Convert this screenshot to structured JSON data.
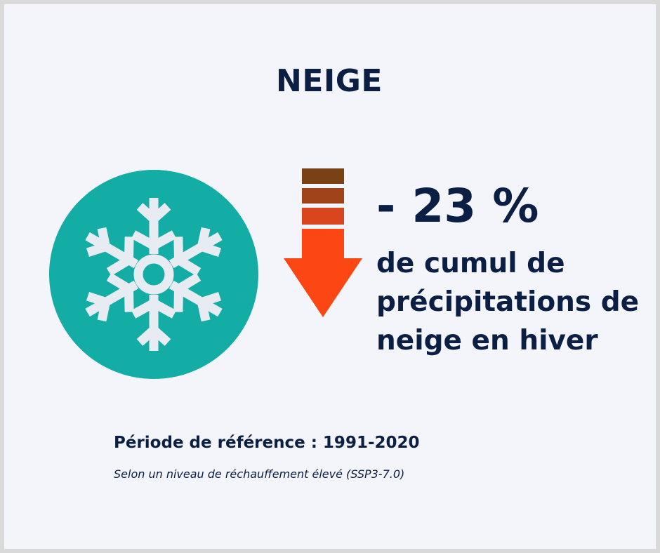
{
  "title": "NEIGE",
  "stat": {
    "value": "- 23 %",
    "description": "de cumul de précipitations de neige en hiver"
  },
  "footer": {
    "period": "Période de référence : 1991-2020",
    "scenario": "Selon un niveau de réchauffement élevé (SSP3-7.0)"
  },
  "icons": {
    "main": "snowflake-icon",
    "trend": "arrow-down-icon"
  },
  "colors": {
    "text": "#0b1f45",
    "circle": "#14ada5",
    "snowflake": "#e7ecf2",
    "arrow_head": "#fc4614",
    "arrow_band_1": "#7a4115",
    "arrow_band_2": "#a1431a",
    "arrow_band_3": "#d9461d",
    "background": "#f3f5fa"
  }
}
